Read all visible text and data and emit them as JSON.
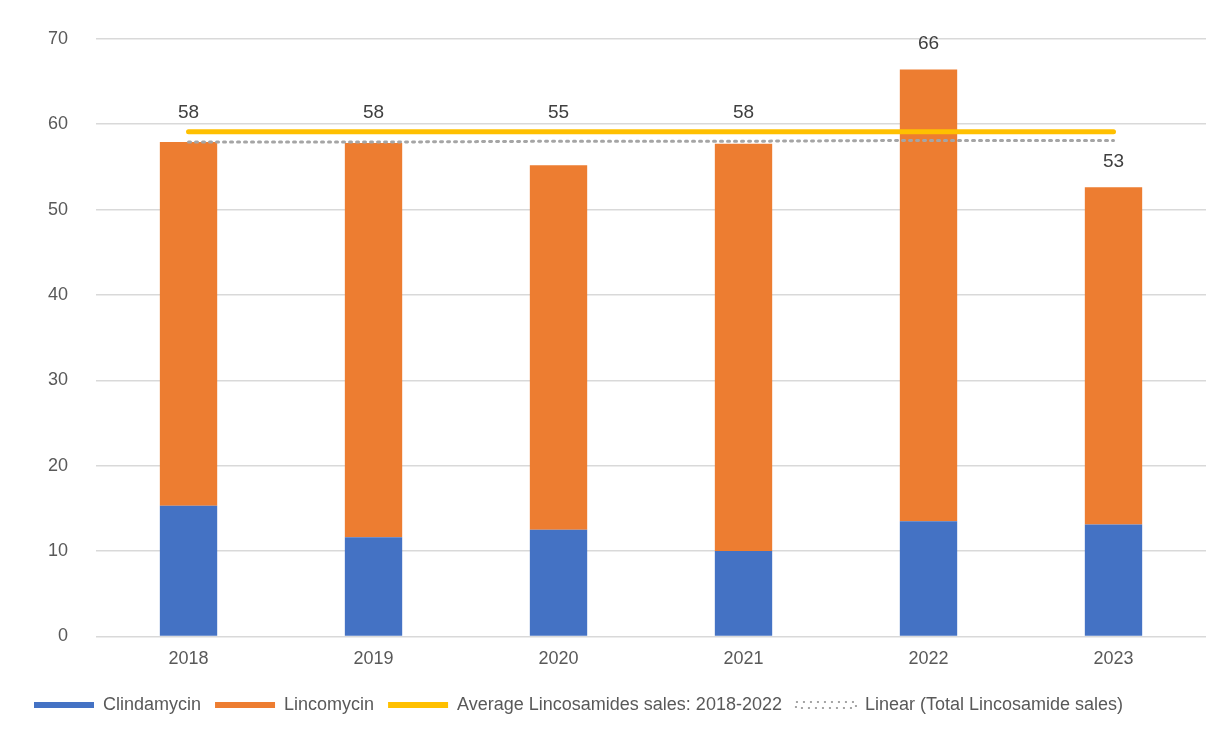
{
  "chart_data": {
    "type": "bar",
    "stacked": true,
    "categories": [
      "2018",
      "2019",
      "2020",
      "2021",
      "2022",
      "2023"
    ],
    "series": [
      {
        "name": "Clindamycin",
        "color": "#4472c4",
        "values": [
          15.3,
          11.6,
          12.5,
          10.0,
          13.5,
          13.1
        ]
      },
      {
        "name": "Lincomycin",
        "color": "#ed7d31",
        "values": [
          42.6,
          46.2,
          42.7,
          47.7,
          52.9,
          39.5
        ]
      },
      {
        "name": "Average Lincosamides sales: 2018-2022",
        "type": "line",
        "color": "#ffc000",
        "line_style": "solid",
        "marker": "none",
        "values": [
          59.1,
          59.1,
          59.1,
          59.1,
          59.1,
          59.1
        ]
      },
      {
        "name": "Linear (Total Lincosamide sales)",
        "type": "line",
        "color": "#a5a5a5",
        "line_style": "dotted",
        "marker": "none",
        "values": [
          57.9,
          57.9,
          58.0,
          58.0,
          58.1,
          58.1
        ]
      }
    ],
    "totals": [
      "58",
      "58",
      "55",
      "58",
      "66",
      "53"
    ],
    "ylim": [
      0,
      70
    ],
    "yticks": [
      0,
      10,
      20,
      30,
      40,
      50,
      60,
      70
    ],
    "grid": "y",
    "legend": "bottom"
  }
}
